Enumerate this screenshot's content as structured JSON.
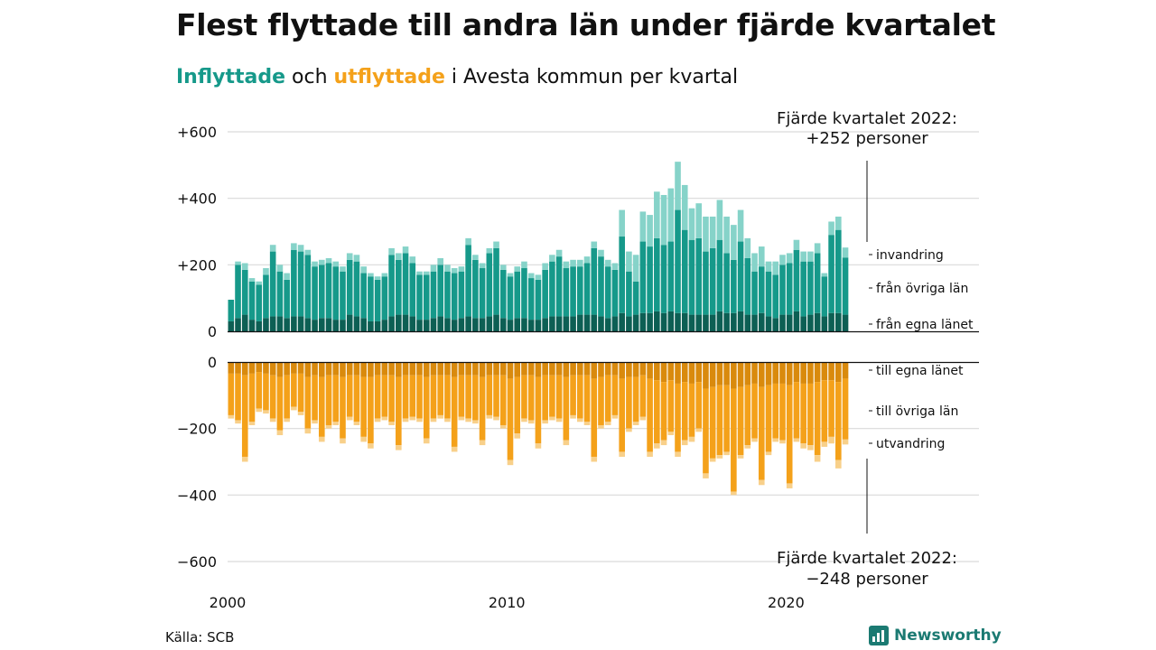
{
  "title": "Flest flyttade till andra län under fjärde kvartalet",
  "subtitle": {
    "in_word": "Inflyttade",
    "mid1": " och ",
    "out_word": "utflyttade",
    "rest": " i Avesta kommun per kvartal"
  },
  "source": "Källa: SCB",
  "brand": "Newsworthy",
  "colors": {
    "in_local": "#0d5f54",
    "in_other": "#16998a",
    "in_immig": "#86d3c9",
    "out_local": "#d98a0d",
    "out_other": "#f4a11a",
    "out_emig": "#f8d08a",
    "in_label": "#16998a",
    "out_label": "#f4a11a"
  },
  "annotations": {
    "top_line1": "Fjärde kvartalet 2022:",
    "top_line2": "+252 personer",
    "bottom_line1": "Fjärde kvartalet 2022:",
    "bottom_line2": "−248 personer"
  },
  "chart_data": {
    "type": "bar",
    "stacked": true,
    "x_start": "2000 Q1",
    "x_end": "2022 Q4",
    "x_ticks": [
      "2000",
      "2010",
      "2020"
    ],
    "y_ticks_top": [
      "+600",
      "+400",
      "+200",
      "0"
    ],
    "y_ticks_bottom": [
      "0",
      "−200",
      "−400",
      "−600"
    ],
    "ylim_top": [
      0,
      600
    ],
    "ylim_bottom": [
      -600,
      0
    ],
    "series_labels": {
      "in_immig": "invandring",
      "in_other": "från övriga län",
      "in_local": "från egna länet",
      "out_local": "till egna länet",
      "out_other": "till övriga län",
      "out_emig": "utvandring"
    },
    "inflow_total": [
      95,
      210,
      205,
      160,
      150,
      190,
      260,
      200,
      175,
      265,
      260,
      245,
      210,
      215,
      220,
      210,
      195,
      235,
      230,
      195,
      175,
      165,
      175,
      250,
      235,
      255,
      225,
      180,
      180,
      200,
      220,
      200,
      190,
      195,
      280,
      230,
      205,
      250,
      270,
      200,
      175,
      195,
      210,
      175,
      170,
      205,
      230,
      245,
      210,
      215,
      215,
      225,
      270,
      245,
      215,
      205,
      365,
      240,
      230,
      360,
      350,
      420,
      410,
      430,
      510,
      440,
      370,
      385,
      345,
      345,
      395,
      345,
      320,
      365,
      280,
      235,
      255,
      210,
      210,
      230,
      235,
      275,
      240,
      240,
      265,
      175,
      330,
      345,
      252
    ],
    "inflow_immigration": [
      0,
      10,
      20,
      10,
      10,
      20,
      20,
      20,
      20,
      20,
      20,
      15,
      15,
      15,
      15,
      15,
      15,
      20,
      20,
      20,
      10,
      10,
      10,
      20,
      20,
      20,
      20,
      10,
      10,
      20,
      20,
      20,
      15,
      15,
      20,
      15,
      15,
      15,
      20,
      15,
      10,
      15,
      20,
      15,
      15,
      20,
      20,
      20,
      20,
      20,
      20,
      20,
      20,
      20,
      20,
      20,
      80,
      60,
      80,
      90,
      95,
      140,
      150,
      160,
      145,
      135,
      95,
      105,
      105,
      95,
      120,
      110,
      105,
      95,
      60,
      55,
      60,
      30,
      40,
      30,
      30,
      30,
      30,
      30,
      30,
      10,
      40,
      40,
      30
    ],
    "inflow_local": [
      30,
      40,
      50,
      35,
      30,
      40,
      45,
      45,
      40,
      45,
      45,
      40,
      35,
      40,
      40,
      35,
      35,
      50,
      45,
      40,
      30,
      30,
      35,
      45,
      50,
      50,
      45,
      35,
      35,
      40,
      45,
      40,
      35,
      40,
      45,
      40,
      40,
      45,
      50,
      40,
      35,
      40,
      40,
      35,
      35,
      40,
      45,
      45,
      45,
      45,
      50,
      50,
      50,
      45,
      40,
      45,
      55,
      45,
      50,
      55,
      55,
      60,
      55,
      60,
      55,
      55,
      50,
      50,
      50,
      50,
      60,
      55,
      55,
      60,
      50,
      50,
      55,
      45,
      40,
      50,
      50,
      60,
      45,
      50,
      55,
      45,
      55,
      55,
      50
    ],
    "outflow_total": [
      170,
      185,
      300,
      190,
      150,
      155,
      180,
      220,
      180,
      145,
      160,
      215,
      185,
      240,
      200,
      190,
      245,
      175,
      190,
      240,
      260,
      180,
      175,
      190,
      265,
      180,
      175,
      180,
      245,
      180,
      170,
      180,
      270,
      175,
      180,
      185,
      250,
      170,
      175,
      200,
      310,
      230,
      180,
      185,
      260,
      185,
      175,
      180,
      250,
      170,
      180,
      190,
      300,
      200,
      190,
      170,
      285,
      210,
      190,
      175,
      285,
      260,
      250,
      220,
      285,
      250,
      240,
      210,
      350,
      300,
      290,
      280,
      400,
      290,
      260,
      240,
      370,
      280,
      240,
      245,
      380,
      240,
      260,
      265,
      300,
      255,
      245,
      320,
      248
    ],
    "outflow_emigration": [
      10,
      10,
      15,
      10,
      10,
      10,
      10,
      15,
      10,
      10,
      10,
      15,
      10,
      15,
      10,
      10,
      15,
      10,
      10,
      15,
      15,
      10,
      10,
      10,
      15,
      10,
      10,
      10,
      15,
      10,
      10,
      10,
      15,
      10,
      10,
      10,
      15,
      10,
      10,
      10,
      15,
      15,
      10,
      10,
      15,
      10,
      10,
      10,
      15,
      10,
      10,
      10,
      15,
      10,
      10,
      10,
      15,
      10,
      10,
      10,
      15,
      15,
      15,
      10,
      15,
      15,
      15,
      10,
      15,
      10,
      10,
      10,
      10,
      10,
      10,
      10,
      15,
      10,
      10,
      10,
      15,
      10,
      15,
      15,
      20,
      15,
      20,
      25,
      15
    ],
    "outflow_local": [
      35,
      35,
      40,
      35,
      30,
      35,
      40,
      45,
      40,
      35,
      35,
      45,
      40,
      45,
      40,
      40,
      45,
      40,
      40,
      45,
      45,
      40,
      40,
      40,
      45,
      40,
      40,
      40,
      45,
      40,
      40,
      40,
      45,
      40,
      40,
      40,
      45,
      40,
      40,
      40,
      50,
      45,
      40,
      40,
      45,
      40,
      40,
      40,
      45,
      40,
      40,
      40,
      50,
      45,
      40,
      40,
      50,
      45,
      45,
      40,
      50,
      55,
      60,
      55,
      65,
      60,
      65,
      60,
      80,
      75,
      70,
      70,
      80,
      75,
      70,
      65,
      75,
      70,
      65,
      65,
      70,
      60,
      65,
      65,
      60,
      55,
      55,
      60,
      50
    ]
  }
}
